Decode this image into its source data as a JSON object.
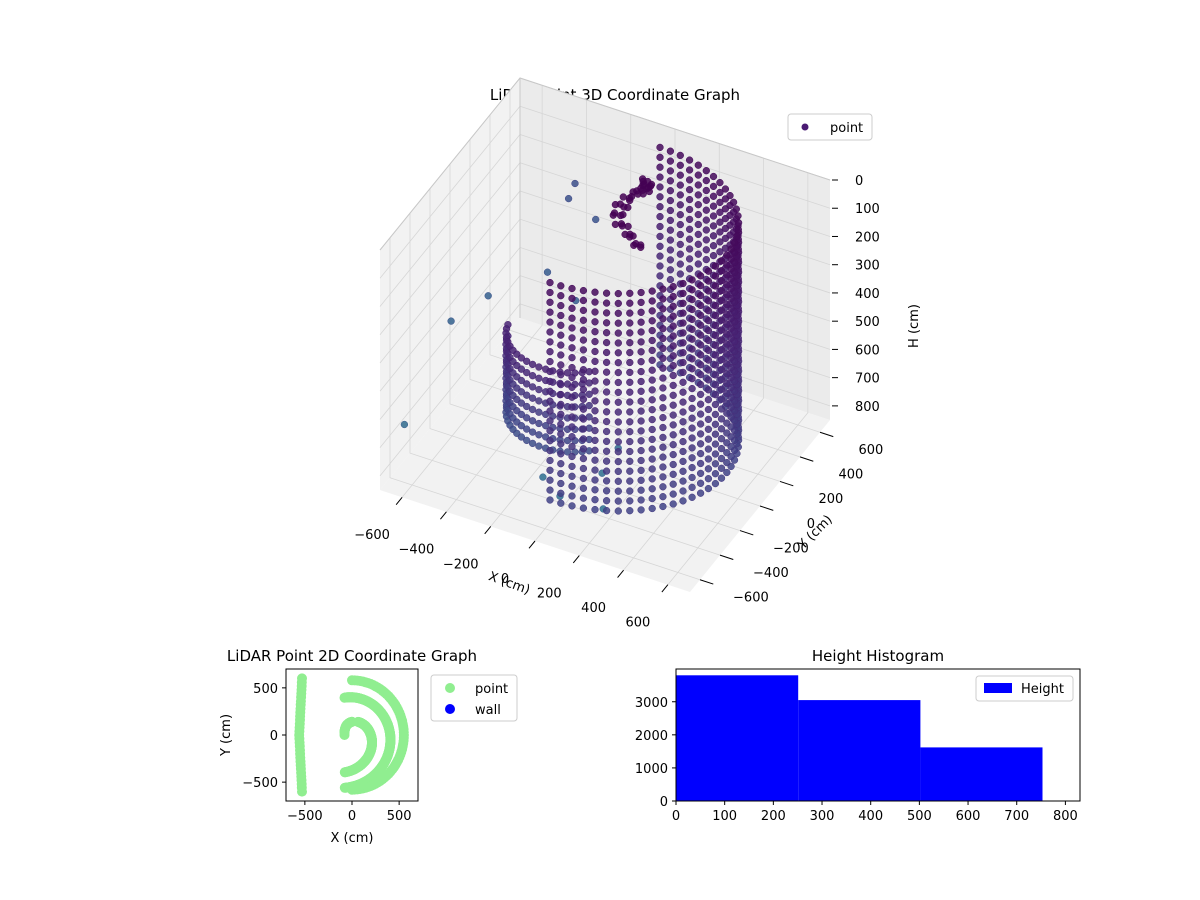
{
  "chart_data": [
    {
      "type": "scatter3d",
      "title": "LiDAR Point 3D Coordinate Graph",
      "xlabel": "X (cm)",
      "ylabel": "Y (cm)",
      "zlabel": "H (cm)",
      "x_ticks": [
        "−600",
        "−400",
        "−200",
        "0",
        "200",
        "400",
        "600"
      ],
      "y_ticks": [
        "−600",
        "−400",
        "−200",
        "0",
        "200",
        "400",
        "600"
      ],
      "z_ticks": [
        "0",
        "100",
        "200",
        "300",
        "400",
        "500",
        "600",
        "700",
        "800"
      ],
      "xlim": [
        -700,
        700
      ],
      "ylim": [
        -700,
        700
      ],
      "zlim": [
        0,
        850
      ],
      "z_inverted": true,
      "legend": {
        "placement": "top-right",
        "entries": [
          {
            "label": "point",
            "color": "#4a1a73"
          }
        ]
      },
      "series": [
        {
          "name": "point",
          "colormap": "viridis"
        }
      ],
      "shape": {
        "wall_radius": 550,
        "wall_start_angle_deg": -90,
        "wall_end_angle_deg": 90,
        "wall_height": [
          0,
          770
        ],
        "inner_arc_radius": 250,
        "outliers": [
          {
            "x": -650,
            "y": -100,
            "h": 500
          },
          {
            "x": -550,
            "y": 50,
            "h": 450
          },
          {
            "x": -300,
            "y": 300,
            "h": 150
          },
          {
            "x": -280,
            "y": 320,
            "h": 100
          },
          {
            "x": -200,
            "y": 350,
            "h": 220
          },
          {
            "x": -350,
            "y": 200,
            "h": 380
          },
          {
            "x": -200,
            "y": 150,
            "h": 420
          },
          {
            "x": -680,
            "y": -500,
            "h": 700
          },
          {
            "x": 100,
            "y": -250,
            "h": 780
          },
          {
            "x": 150,
            "y": -200,
            "h": 700
          },
          {
            "x": -100,
            "y": -400,
            "h": 780
          },
          {
            "x": 0,
            "y": -450,
            "h": 800
          },
          {
            "x": 150,
            "y": -350,
            "h": 850
          }
        ]
      }
    },
    {
      "type": "scatter",
      "title": "LiDAR Point 2D Coordinate Graph",
      "xlabel": "X (cm)",
      "ylabel": "Y (cm)",
      "x_ticks": [
        "−500",
        "0",
        "500"
      ],
      "y_ticks": [
        "−500",
        "0",
        "500"
      ],
      "xlim": [
        -700,
        700
      ],
      "ylim": [
        -700,
        700
      ],
      "legend": {
        "placement": "outside-right",
        "entries": [
          {
            "label": "point",
            "color": "#90ee90"
          },
          {
            "label": "wall",
            "color": "#0000ff"
          }
        ]
      },
      "series": [
        {
          "name": "point",
          "color": "#90ee90"
        },
        {
          "name": "wall",
          "color": "#0000ff",
          "values": []
        }
      ]
    },
    {
      "type": "bar",
      "title": "Height Histogram",
      "x_ticks": [
        "0",
        "100",
        "200",
        "300",
        "400",
        "500",
        "600",
        "700",
        "800"
      ],
      "y_ticks": [
        "0",
        "1000",
        "2000",
        "3000"
      ],
      "xlim": [
        0,
        830
      ],
      "ylim": [
        0,
        3990
      ],
      "legend": {
        "placement": "top-right",
        "entries": [
          {
            "label": "Height",
            "color": "#0000ff"
          }
        ]
      },
      "bins": [
        {
          "start": 0,
          "end": 251,
          "count": 3800
        },
        {
          "start": 251,
          "end": 502,
          "count": 3050
        },
        {
          "start": 502,
          "end": 753,
          "count": 1620
        }
      ],
      "color": "#0000ff"
    }
  ]
}
